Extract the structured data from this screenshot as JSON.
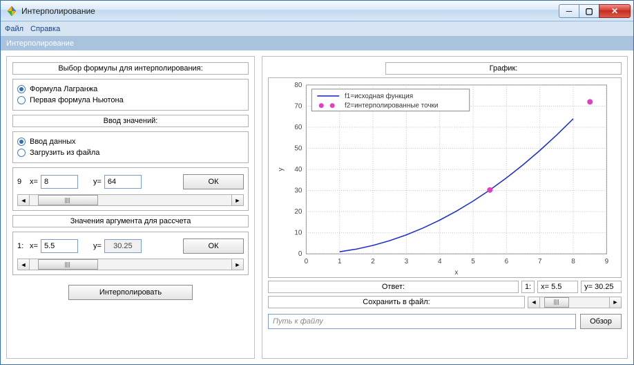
{
  "window": {
    "title": "Интерполирование"
  },
  "menu": {
    "file": "Файл",
    "help": "Справка"
  },
  "subheader": "Интерполирование",
  "formula_group": {
    "header": "Выбор формулы для интерполирования:",
    "opt1": "Формула Лагранжа",
    "opt2": "Первая формула Ньютона",
    "selected": 1
  },
  "values_group": {
    "header": "Ввод значений:",
    "opt1": "Ввод данных",
    "opt2": "Загрузить из файла",
    "selected": 1
  },
  "data_input": {
    "index": "9",
    "x_label": "x=",
    "x_value": "8",
    "y_label": "y=",
    "y_value": "64",
    "ok": "ОК"
  },
  "args_group": {
    "header": "Значения аргумента для рассчета"
  },
  "arg_input": {
    "index": "1:",
    "x_label": "x=",
    "x_value": "5.5",
    "y_label": "y=",
    "y_value": "30.25",
    "ok": "ОК"
  },
  "interpolate_btn": "Интерполировать",
  "chart": {
    "header": "График:",
    "legend1": "f1=исходная функция",
    "legend2": "f2=интерполированные точки",
    "x_label": "x",
    "y_label": "y",
    "xlim": [
      0,
      9
    ],
    "ylim": [
      0,
      80
    ],
    "xticks": [
      0,
      1,
      2,
      3,
      4,
      5,
      6,
      7,
      8,
      9
    ],
    "yticks": [
      0,
      10,
      20,
      30,
      40,
      50,
      60,
      70,
      80
    ],
    "line_color": "#2030d0",
    "point_color": "#e040c0",
    "grid_color": "#c0c0c0",
    "bg_color": "#ffffff",
    "tick_font_size": 10,
    "line_data": [
      [
        1,
        1
      ],
      [
        1.5,
        2.25
      ],
      [
        2,
        4
      ],
      [
        2.5,
        6.25
      ],
      [
        3,
        9
      ],
      [
        3.5,
        12.25
      ],
      [
        4,
        16
      ],
      [
        4.5,
        20.25
      ],
      [
        5,
        25
      ],
      [
        5.5,
        30.25
      ],
      [
        6,
        36
      ],
      [
        6.5,
        42.25
      ],
      [
        7,
        49
      ],
      [
        7.5,
        56.25
      ],
      [
        8,
        64
      ]
    ],
    "points": [
      [
        5.5,
        30.25
      ],
      [
        8.5,
        72
      ]
    ]
  },
  "answer": {
    "label": "Ответ:",
    "save_label": "Сохранить в файл:",
    "idx": "1:",
    "x_label": "x=",
    "x_value": "5.5",
    "y_label": "y=",
    "y_value": "30.25"
  },
  "file": {
    "placeholder": "Путь к файлу",
    "browse": "Обзор"
  }
}
